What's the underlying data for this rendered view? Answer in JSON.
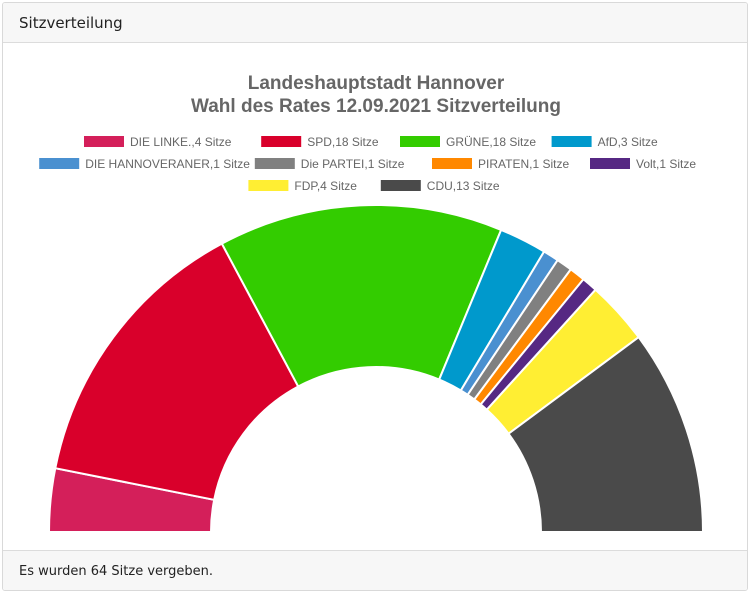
{
  "header": {
    "title": "Sitzverteilung"
  },
  "footer": {
    "text": "Es wurden 64 Sitze vergeben."
  },
  "chart_data": {
    "type": "pie",
    "variant": "half-donut (parliament seats)",
    "title": [
      "Landeshauptstadt Hannover",
      "Wahl des Rates 12.09.2021 Sitzverteilung"
    ],
    "legend_position": "top",
    "series": [
      {
        "name": "DIE LINKE.",
        "value": 4,
        "label": "DIE LINKE.,4 Sitze",
        "color": "#d41f5a"
      },
      {
        "name": "SPD",
        "value": 18,
        "label": "SPD,18 Sitze",
        "color": "#d9002b"
      },
      {
        "name": "GRÜNE",
        "value": 18,
        "label": "GRÜNE,18 Sitze",
        "color": "#33cc00"
      },
      {
        "name": "AfD",
        "value": 3,
        "label": "AfD,3 Sitze",
        "color": "#0099cc"
      },
      {
        "name": "DIE HANNOVERANER",
        "value": 1,
        "label": "DIE HANNOVERANER,1 Sitze",
        "color": "#4a90d0"
      },
      {
        "name": "Die PARTEI",
        "value": 1,
        "label": "Die PARTEI,1 Sitze",
        "color": "#808080"
      },
      {
        "name": "PIRATEN",
        "value": 1,
        "label": "PIRATEN,1 Sitze",
        "color": "#ff8800"
      },
      {
        "name": "Volt",
        "value": 1,
        "label": "Volt,1 Sitze",
        "color": "#562883"
      },
      {
        "name": "FDP",
        "value": 4,
        "label": "FDP,4 Sitze",
        "color": "#ffee33"
      },
      {
        "name": "CDU",
        "value": 13,
        "label": "CDU,13 Sitze",
        "color": "#4a4a4a"
      }
    ]
  }
}
